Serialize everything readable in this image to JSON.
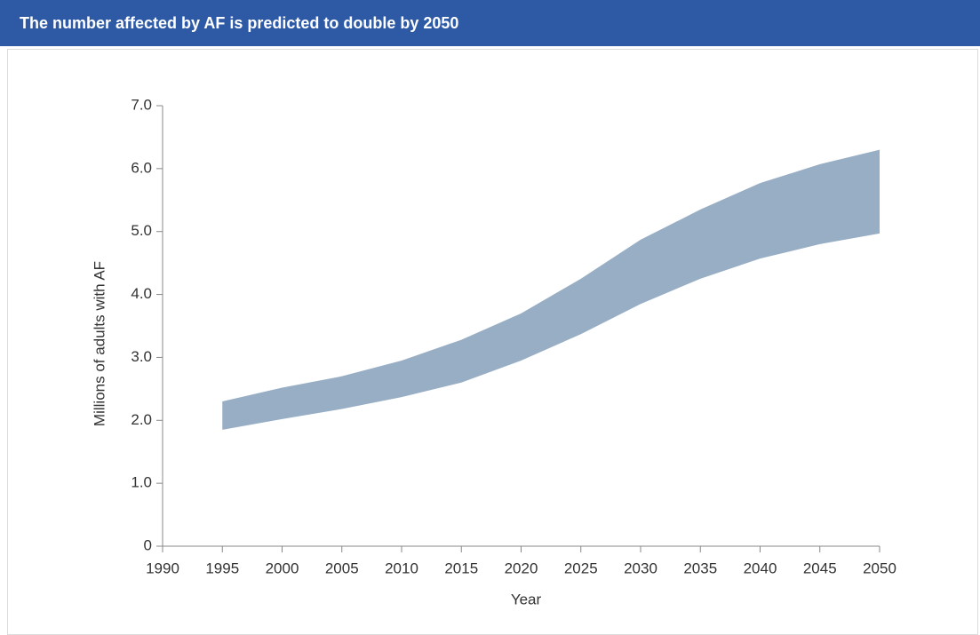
{
  "header": {
    "title": "The number affected by AF is predicted to double by 2050"
  },
  "chart_data": {
    "type": "range_area",
    "x": [
      1995,
      2000,
      2005,
      2010,
      2015,
      2020,
      2025,
      2030,
      2035,
      2040,
      2045,
      2050
    ],
    "high": [
      2.3,
      2.52,
      2.7,
      2.95,
      3.28,
      3.7,
      4.25,
      4.87,
      5.35,
      5.77,
      6.07,
      6.3
    ],
    "low": [
      1.85,
      2.02,
      2.18,
      2.37,
      2.6,
      2.95,
      3.37,
      3.85,
      4.25,
      4.57,
      4.8,
      4.97
    ],
    "color": "#97aec5",
    "xlabel": "Year",
    "ylabel": "Millions of adults with AF",
    "xlim": [
      1990,
      2050
    ],
    "xticks": [
      1990,
      1995,
      2000,
      2005,
      2010,
      2015,
      2020,
      2025,
      2030,
      2035,
      2040,
      2045,
      2050
    ],
    "ylim": [
      0,
      7
    ],
    "yticks": [
      0,
      {
        "value": 1,
        "label": "1.0"
      },
      {
        "value": 2,
        "label": "2.0"
      },
      {
        "value": 3,
        "label": "3.0"
      },
      {
        "value": 4,
        "label": "4.0"
      },
      {
        "value": 5,
        "label": "5.0"
      },
      {
        "value": 6,
        "label": "6.0"
      },
      {
        "value": 7,
        "label": "7.0"
      }
    ]
  }
}
